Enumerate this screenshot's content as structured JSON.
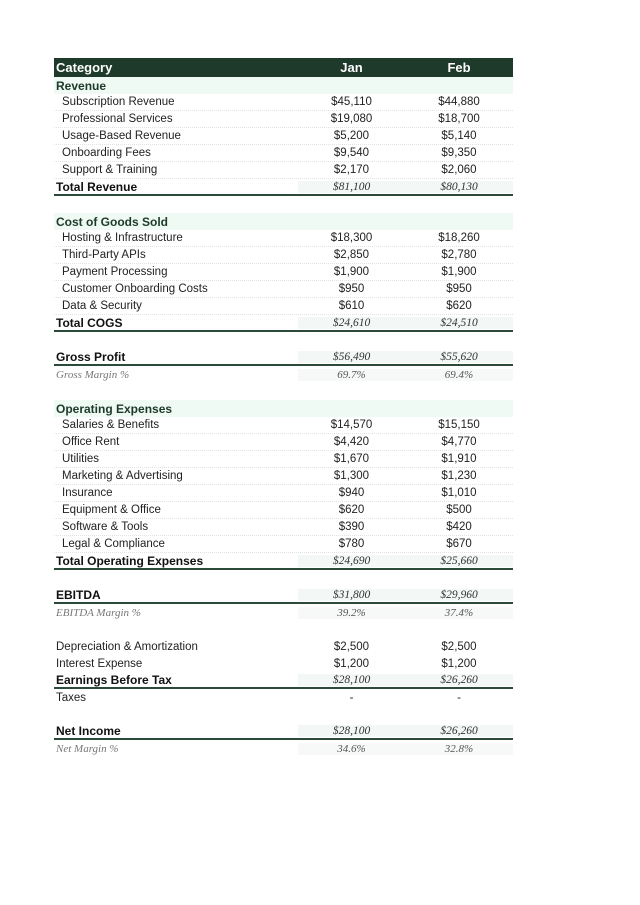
{
  "header": {
    "category": "Category",
    "jan": "Jan",
    "feb": "Feb"
  },
  "rows": [
    {
      "type": "sec",
      "label": "Revenue"
    },
    {
      "type": "item",
      "label": "Subscription Revenue",
      "jan": "$45,110",
      "feb": "$44,880"
    },
    {
      "type": "item",
      "label": "Professional Services",
      "jan": "$19,080",
      "feb": "$18,700"
    },
    {
      "type": "item",
      "label": "Usage-Based Revenue",
      "jan": "$5,200",
      "feb": "$5,140"
    },
    {
      "type": "item",
      "label": "Onboarding Fees",
      "jan": "$9,540",
      "feb": "$9,350"
    },
    {
      "type": "item",
      "label": "Support & Training",
      "jan": "$2,170",
      "feb": "$2,060"
    },
    {
      "type": "total",
      "label": "Total Revenue",
      "jan": "$81,100",
      "feb": "$80,130"
    },
    {
      "type": "blank"
    },
    {
      "type": "sec",
      "label": "Cost of Goods Sold"
    },
    {
      "type": "item",
      "label": "Hosting & Infrastructure",
      "jan": "$18,300",
      "feb": "$18,260"
    },
    {
      "type": "item",
      "label": "Third-Party APIs",
      "jan": "$2,850",
      "feb": "$2,780"
    },
    {
      "type": "item",
      "label": "Payment Processing",
      "jan": "$1,900",
      "feb": "$1,900"
    },
    {
      "type": "item",
      "label": "Customer Onboarding Costs",
      "jan": "$950",
      "feb": "$950"
    },
    {
      "type": "item",
      "label": "Data & Security",
      "jan": "$610",
      "feb": "$620"
    },
    {
      "type": "total",
      "label": "Total COGS",
      "jan": "$24,610",
      "feb": "$24,510"
    },
    {
      "type": "blank"
    },
    {
      "type": "big",
      "label": "Gross Profit",
      "jan": "$56,490",
      "feb": "$55,620"
    },
    {
      "type": "margin",
      "label": "Gross Margin %",
      "jan": "69.7%",
      "feb": "69.4%"
    },
    {
      "type": "blank"
    },
    {
      "type": "sec",
      "label": "Operating Expenses"
    },
    {
      "type": "item",
      "label": "Salaries & Benefits",
      "jan": "$14,570",
      "feb": "$15,150"
    },
    {
      "type": "item",
      "label": "Office Rent",
      "jan": "$4,420",
      "feb": "$4,770"
    },
    {
      "type": "item",
      "label": "Utilities",
      "jan": "$1,670",
      "feb": "$1,910"
    },
    {
      "type": "item",
      "label": "Marketing & Advertising",
      "jan": "$1,300",
      "feb": "$1,230"
    },
    {
      "type": "item",
      "label": "Insurance",
      "jan": "$940",
      "feb": "$1,010"
    },
    {
      "type": "item",
      "label": "Equipment & Office",
      "jan": "$620",
      "feb": "$500"
    },
    {
      "type": "item",
      "label": "Software & Tools",
      "jan": "$390",
      "feb": "$420"
    },
    {
      "type": "item",
      "label": "Legal & Compliance",
      "jan": "$780",
      "feb": "$670"
    },
    {
      "type": "total",
      "label": "Total Operating Expenses",
      "jan": "$24,690",
      "feb": "$25,660"
    },
    {
      "type": "blank"
    },
    {
      "type": "big",
      "label": "EBITDA",
      "jan": "$31,800",
      "feb": "$29,960"
    },
    {
      "type": "margin",
      "label": "EBITDA Margin %",
      "jan": "39.2%",
      "feb": "37.4%"
    },
    {
      "type": "blank"
    },
    {
      "type": "plain",
      "label": "Depreciation & Amortization",
      "jan": "$2,500",
      "feb": "$2,500"
    },
    {
      "type": "plain",
      "label": "Interest Expense",
      "jan": "$1,200",
      "feb": "$1,200"
    },
    {
      "type": "total",
      "label": "Earnings Before Tax",
      "jan": "$28,100",
      "feb": "$26,260"
    },
    {
      "type": "plain",
      "label": "Taxes",
      "jan": "-",
      "feb": "-"
    },
    {
      "type": "blank"
    },
    {
      "type": "big",
      "label": "Net Income",
      "jan": "$28,100",
      "feb": "$26,260"
    },
    {
      "type": "margin",
      "label": "Net Margin %",
      "jan": "34.6%",
      "feb": "32.8%"
    }
  ]
}
